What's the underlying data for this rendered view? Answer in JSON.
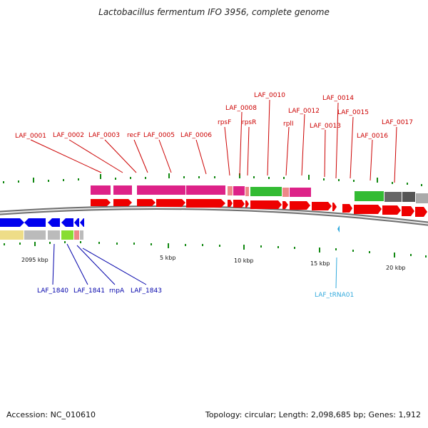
{
  "title": "Lactobacillus fermentum IFO 3956, complete genome",
  "footer": {
    "accession": "Accession: NC_010610",
    "summary": "Topology: circular; Length: 2,098,685 bp; Genes: 1,912"
  },
  "colors": {
    "forward_label": "#cc0000",
    "reverse_label": "#0000aa",
    "trna_label": "#33aadd",
    "cds_forward": "#ee0000",
    "cds_reverse": "#0000ee",
    "tick": "#118811",
    "backbone": "#666666"
  },
  "forward_labels": [
    "LAF_0001",
    "LAF_0002",
    "LAF_0003",
    "recF",
    "LAF_0005",
    "LAF_0006",
    "rpsF",
    "LAF_0008",
    "rpsR",
    "LAF_0010",
    "rplI",
    "LAF_0012",
    "LAF_0013",
    "LAF_0014",
    "LAF_0015",
    "LAF_0016",
    "LAF_0017"
  ],
  "reverse_labels": [
    "LAF_1840",
    "LAF_1841",
    "rnpA",
    "LAF_1843"
  ],
  "trna_labels": [
    "LAF_tRNA01"
  ],
  "scale_labels": [
    "2095 kbp",
    "5 kbp",
    "10 kbp",
    "15 kbp",
    "20 kbp"
  ]
}
